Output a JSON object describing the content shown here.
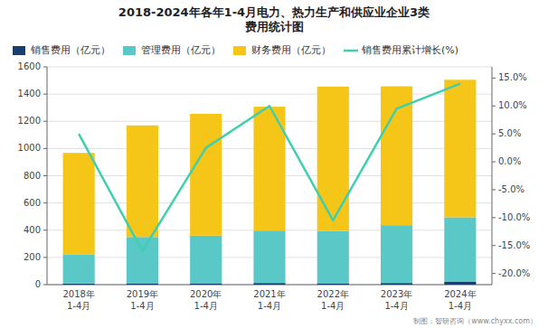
{
  "chart_data": {
    "type": "bar",
    "title": "2018-2024年各年1-4月电力、热力生产和供应业企业3类\n费用统计图",
    "annotations": [
      "制图：智研咨询（www.chyxx.com）"
    ],
    "categories": [
      "2018年\n1-4月",
      "2019年\n1-4月",
      "2020年\n1-4月",
      "2021年\n1-4月",
      "2022年\n1-4月",
      "2023年\n1-4月",
      "2024年\n1-4月"
    ],
    "stacked": true,
    "grid": true,
    "legend": "top",
    "ylim": [
      0,
      1600
    ],
    "yticks": [
      0,
      200,
      400,
      600,
      800,
      1000,
      1200,
      1400,
      1600
    ],
    "y2lim": [
      -22.0,
      17.0
    ],
    "y2ticks": [
      {
        "value": 15.0,
        "label": "15.0%"
      },
      {
        "value": 10.0,
        "label": "10.0%"
      },
      {
        "value": 5.0,
        "label": "5.0%"
      },
      {
        "value": 0.0,
        "label": "0.0%"
      },
      {
        "value": -5.0,
        "label": "-5.0%"
      },
      {
        "value": -10.0,
        "label": "-10.0%"
      },
      {
        "value": -15.0,
        "label": "-15.0%"
      },
      {
        "value": -20.0,
        "label": "-20.0%"
      }
    ],
    "series": [
      {
        "name": "销售费用（亿元）",
        "type": "bar",
        "color": "#1b3d6e",
        "values": [
          8,
          10,
          10,
          12,
          10,
          12,
          20
        ]
      },
      {
        "name": "管理费用（亿元）",
        "type": "bar",
        "color": "#5bc8c8",
        "values": [
          215,
          340,
          350,
          385,
          385,
          425,
          475
        ]
      },
      {
        "name": "财务费用（亿元）",
        "type": "bar",
        "color": "#f5c518",
        "values": [
          745,
          820,
          895,
          910,
          1060,
          1020,
          1010
        ]
      },
      {
        "name": "销售费用累计增长(%)",
        "type": "line",
        "axis": "y2",
        "color": "#3ecfaf",
        "values": [
          5.0,
          -16.0,
          2.5,
          10.0,
          -10.5,
          9.5,
          14.0
        ]
      }
    ]
  }
}
